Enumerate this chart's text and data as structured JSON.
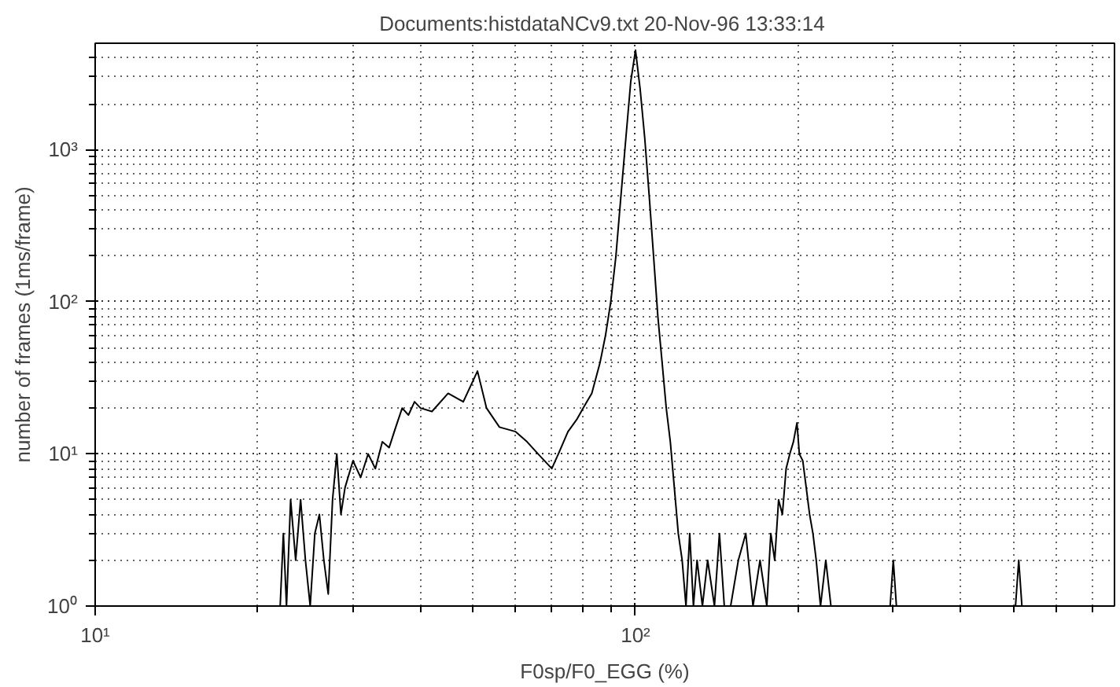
{
  "chart_data": {
    "type": "line",
    "title": "Documents:histdataNCv9.txt  20-Nov-96 13:33:14",
    "xlabel": "F0sp/F0_EGG (%)",
    "ylabel": "number of frames (1ms/frame)",
    "log": "xy",
    "grid": true,
    "xlim": [
      10,
      770
    ],
    "ylim": [
      1,
      5000
    ],
    "xticks": [
      {
        "value": 10,
        "label": "10¹"
      },
      {
        "value": 100,
        "label": "10²"
      }
    ],
    "yticks": [
      {
        "value": 1,
        "label": "10⁰"
      },
      {
        "value": 10,
        "label": "10¹"
      },
      {
        "value": 100,
        "label": "10²"
      },
      {
        "value": 1000,
        "label": "10³"
      }
    ],
    "series": [
      {
        "color": "#000000",
        "x": [
          14,
          16,
          null,
          20,
          21,
          null,
          22,
          22.3,
          22.6,
          23,
          23.5,
          24,
          24.5,
          25,
          25.5,
          26,
          26.5,
          27,
          27.5,
          28,
          28.5,
          29,
          30,
          31,
          32,
          33,
          34,
          35,
          36,
          37,
          38,
          39,
          40,
          42,
          45,
          48,
          51,
          53,
          56,
          60,
          63,
          66,
          70,
          72,
          75,
          78,
          80,
          83,
          86,
          88,
          90,
          92,
          94,
          96,
          98,
          100,
          102,
          104,
          106,
          108,
          110,
          112,
          114,
          116,
          118,
          120,
          122,
          124,
          126,
          128,
          130,
          133,
          136,
          140,
          143,
          146,
          150,
          155,
          160,
          165,
          170,
          175,
          178,
          181,
          184,
          187,
          190,
          193,
          196,
          199,
          201,
          204,
          207,
          210,
          213,
          216,
          220,
          225,
          230,
          null,
          296,
          300,
          304,
          null,
          505,
          512,
          519
        ],
        "values": [
          1,
          1,
          null,
          1,
          1,
          null,
          1,
          3,
          1,
          5,
          2,
          5,
          2,
          1,
          3,
          4,
          2,
          1.2,
          5,
          10,
          4,
          6,
          9,
          7,
          10,
          8,
          12,
          11,
          15,
          20,
          18,
          22,
          20,
          19,
          25,
          22,
          35,
          20,
          15,
          14,
          12,
          10,
          8,
          10,
          14,
          17,
          20,
          25,
          40,
          60,
          100,
          200,
          500,
          1200,
          2800,
          4500,
          2500,
          1200,
          500,
          200,
          80,
          40,
          20,
          12,
          6,
          3,
          2,
          1,
          3,
          1,
          2,
          1,
          2,
          1,
          3,
          1,
          1,
          2,
          3,
          1,
          2,
          1,
          3,
          2,
          5,
          4,
          8,
          10,
          12,
          16,
          10,
          9,
          6,
          4,
          3,
          2,
          1,
          2,
          1,
          null,
          1,
          2,
          1,
          null,
          1,
          2,
          1
        ]
      }
    ]
  }
}
